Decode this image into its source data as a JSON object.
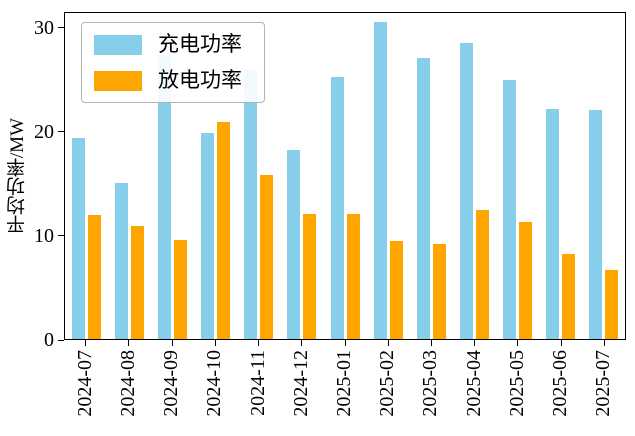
{
  "chart_data": {
    "type": "bar",
    "title": "",
    "xlabel": "",
    "ylabel": "平均功率/MW",
    "ylim": [
      0,
      31.5
    ],
    "yticks": [
      0,
      10,
      20,
      30
    ],
    "grid": false,
    "legend_position": "upper left",
    "categories": [
      "2024-07",
      "2024-08",
      "2024-09",
      "2024-10",
      "2024-11",
      "2024-12",
      "2025-01",
      "2025-02",
      "2025-03",
      "2025-04",
      "2025-05",
      "2025-06",
      "2025-07"
    ],
    "series": [
      {
        "name": "充电功率",
        "color": "#87CEEB",
        "values": [
          19.4,
          15.1,
          27.4,
          19.9,
          26.0,
          18.3,
          25.3,
          30.6,
          27.2,
          28.6,
          25.0,
          22.2,
          22.1
        ]
      },
      {
        "name": "放电功率",
        "color": "#FFA500",
        "values": [
          12.0,
          10.9,
          9.6,
          21.0,
          15.8,
          12.1,
          12.1,
          9.5,
          9.2,
          12.5,
          11.3,
          8.2,
          6.7
        ]
      }
    ]
  },
  "colors": {
    "axis": "#000000",
    "background": "#ffffff",
    "legend_border": "#b3b3b3",
    "charge_bar": "#87CEEB",
    "discharge_bar": "#FFA500"
  }
}
